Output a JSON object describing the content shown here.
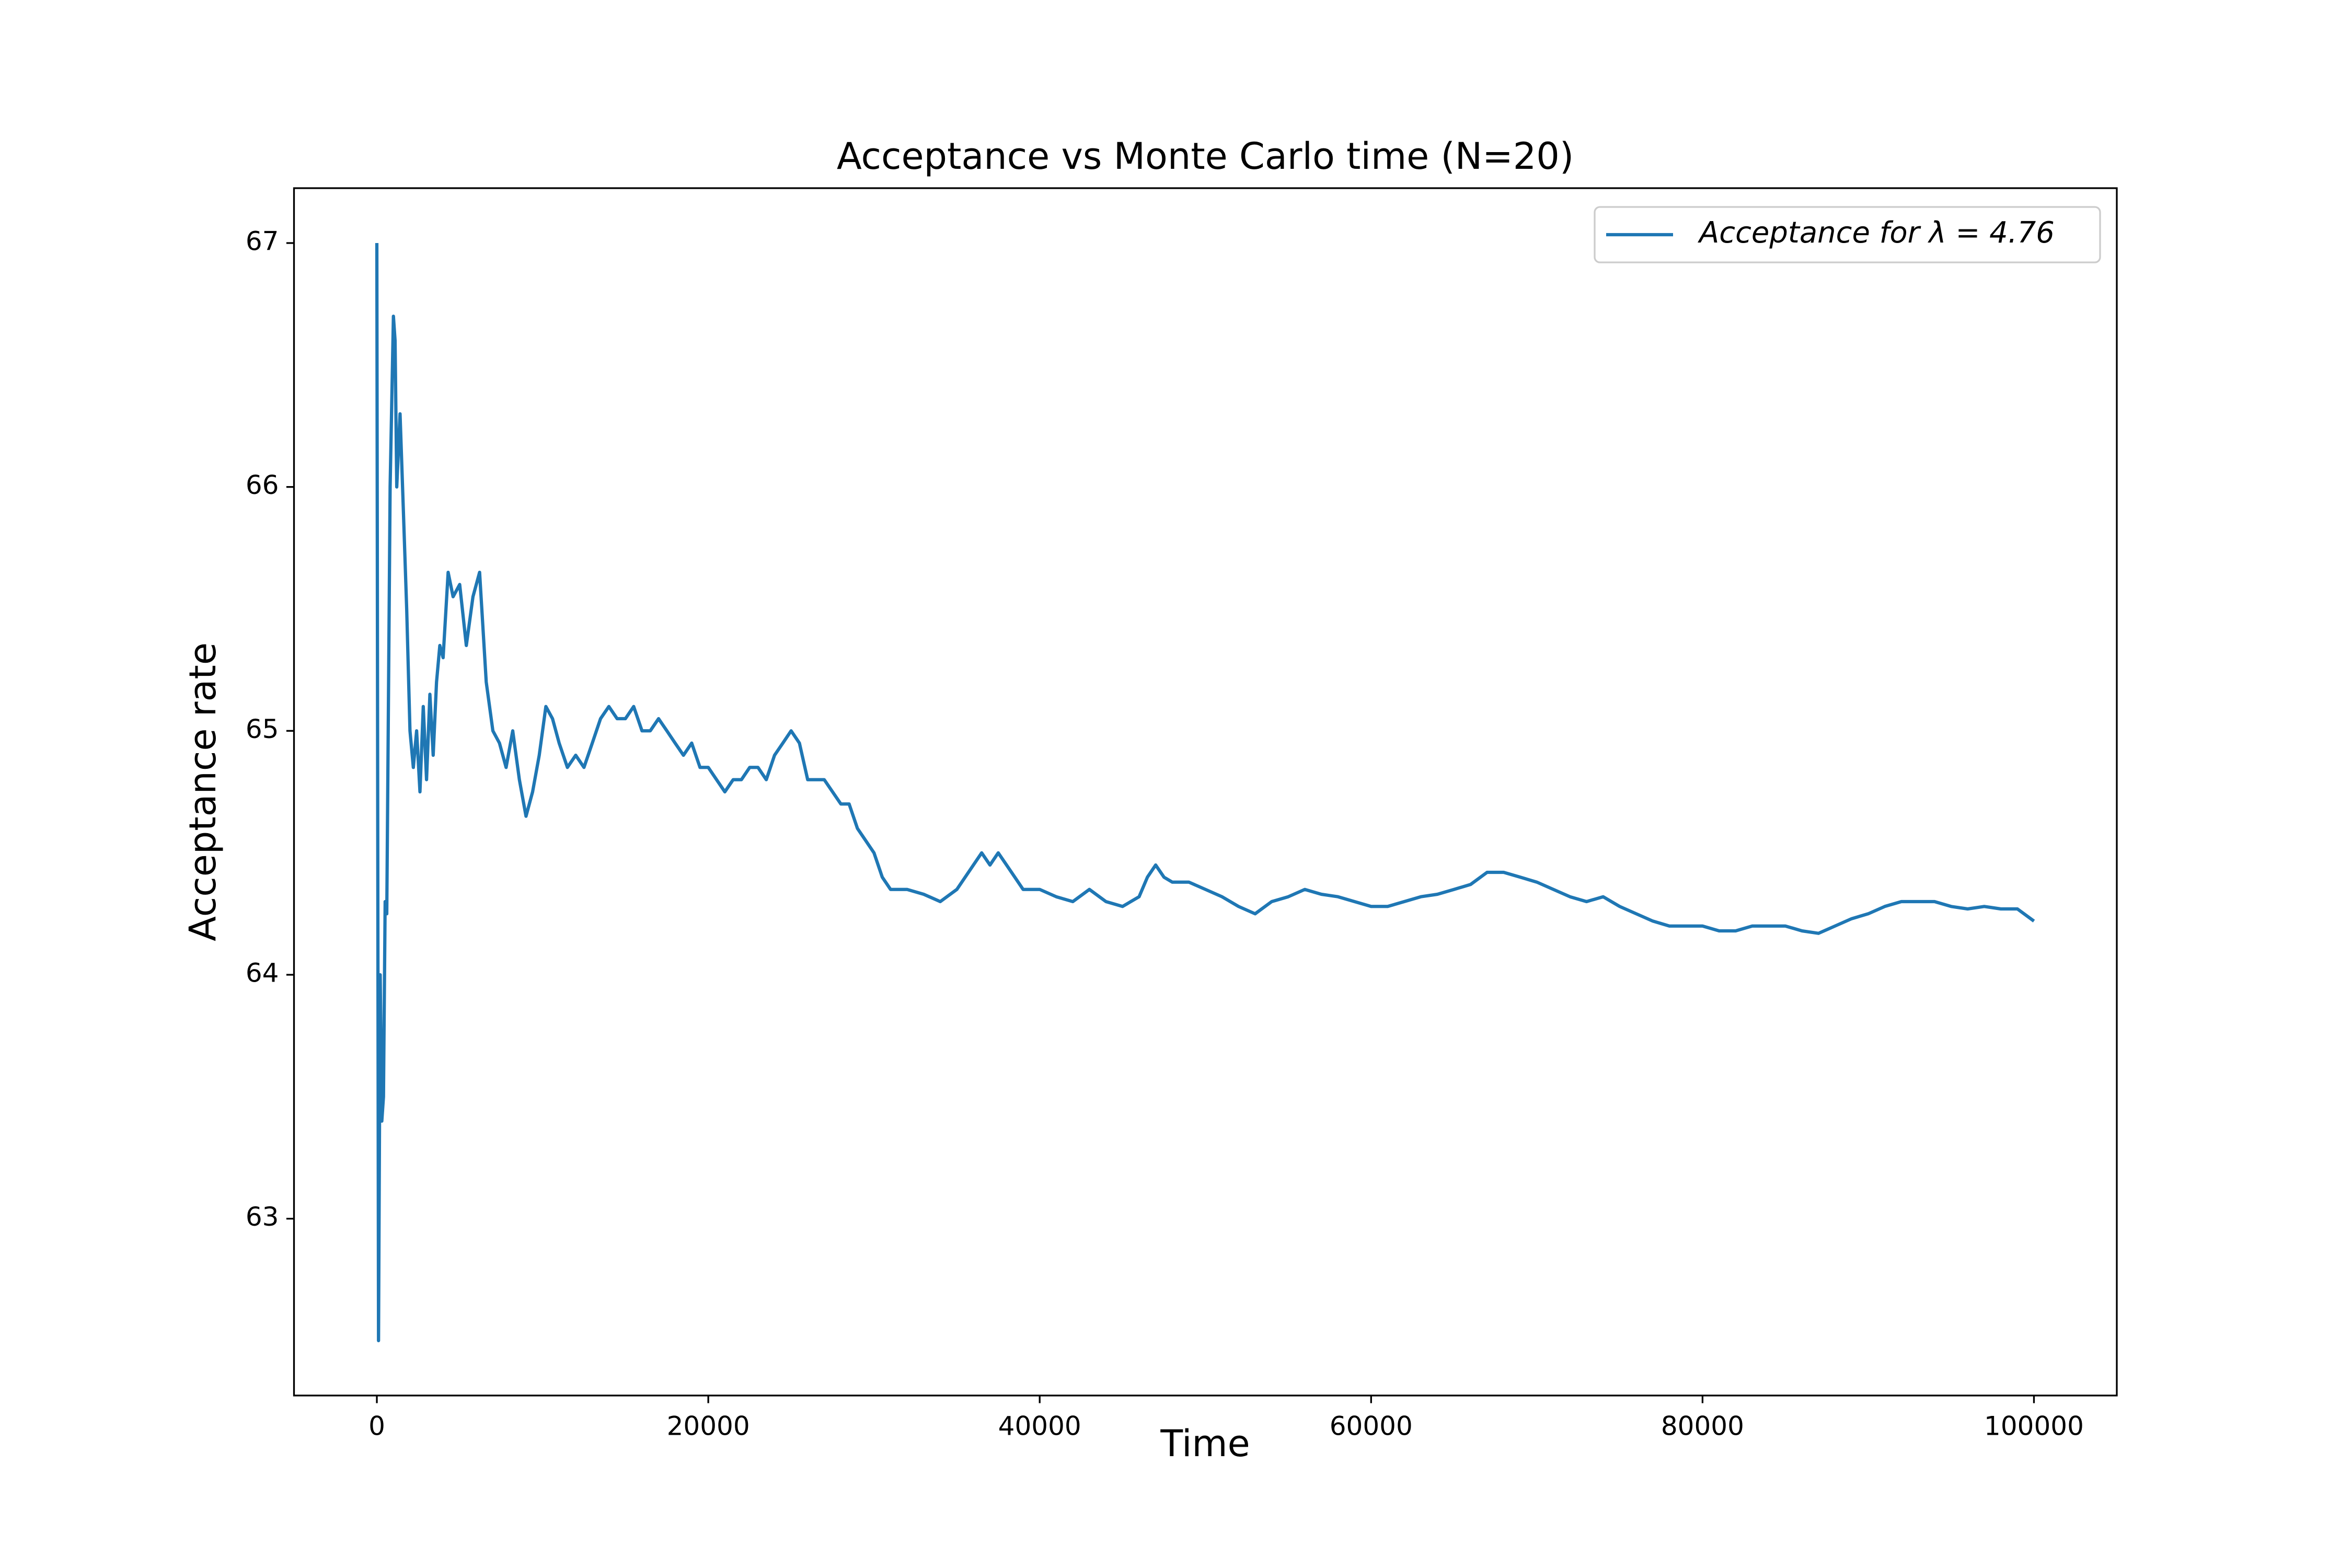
{
  "chart_data": {
    "type": "line",
    "title": "Acceptance vs Monte Carlo time (N=20)",
    "xlabel": "Time",
    "ylabel": "Acceptance rate",
    "x": [
      0,
      100,
      200,
      300,
      400,
      500,
      600,
      800,
      1000,
      1100,
      1200,
      1400,
      1600,
      1800,
      2000,
      2200,
      2400,
      2600,
      2800,
      3000,
      3200,
      3400,
      3600,
      3800,
      4000,
      4300,
      4600,
      5000,
      5400,
      5800,
      6200,
      6600,
      7000,
      7400,
      7800,
      8200,
      8600,
      9000,
      9400,
      9800,
      10200,
      10600,
      11000,
      11500,
      12000,
      12500,
      13000,
      13500,
      14000,
      14500,
      15000,
      15500,
      16000,
      16500,
      17000,
      17500,
      18000,
      18500,
      19000,
      19500,
      20000,
      20500,
      21000,
      21500,
      22000,
      22500,
      23000,
      23500,
      24000,
      24500,
      25000,
      25500,
      26000,
      26500,
      27000,
      27500,
      28000,
      28500,
      29000,
      29500,
      30000,
      30500,
      31000,
      31500,
      32000,
      33000,
      34000,
      35000,
      36000,
      36500,
      37000,
      37500,
      38000,
      38500,
      39000,
      40000,
      41000,
      42000,
      43000,
      44000,
      45000,
      46000,
      46500,
      47000,
      47500,
      48000,
      49000,
      50000,
      51000,
      52000,
      53000,
      54000,
      55000,
      56000,
      57000,
      58000,
      59000,
      60000,
      61000,
      62000,
      63000,
      64000,
      65000,
      66000,
      67000,
      68000,
      69000,
      70000,
      71000,
      72000,
      73000,
      74000,
      75000,
      76000,
      77000,
      78000,
      79000,
      80000,
      81000,
      82000,
      83000,
      84000,
      85000,
      86000,
      87000,
      88000,
      89000,
      90000,
      91000,
      92000,
      93000,
      94000,
      95000,
      96000,
      97000,
      98000,
      99000,
      100000
    ],
    "series": [
      {
        "name": "Acceptance for λ = 4.76",
        "color": "#1f77b4",
        "values": [
          67.0,
          62.5,
          64.0,
          63.4,
          63.5,
          64.3,
          64.25,
          66.0,
          66.7,
          66.6,
          66.0,
          66.3,
          65.9,
          65.5,
          65.0,
          64.85,
          65.0,
          64.75,
          65.1,
          64.8,
          65.15,
          64.9,
          65.2,
          65.35,
          65.3,
          65.65,
          65.55,
          65.6,
          65.35,
          65.55,
          65.65,
          65.2,
          65.0,
          64.95,
          64.85,
          65.0,
          64.8,
          64.65,
          64.75,
          64.9,
          65.1,
          65.05,
          64.95,
          64.85,
          64.9,
          64.85,
          64.95,
          65.05,
          65.1,
          65.05,
          65.05,
          65.1,
          65.0,
          65.0,
          65.05,
          65.0,
          64.95,
          64.9,
          64.95,
          64.85,
          64.85,
          64.8,
          64.75,
          64.8,
          64.8,
          64.85,
          64.85,
          64.8,
          64.9,
          64.95,
          65.0,
          64.95,
          64.8,
          64.8,
          64.8,
          64.75,
          64.7,
          64.7,
          64.6,
          64.55,
          64.5,
          64.4,
          64.35,
          64.35,
          64.35,
          64.33,
          64.3,
          64.35,
          64.45,
          64.5,
          64.45,
          64.5,
          64.45,
          64.4,
          64.35,
          64.35,
          64.32,
          64.3,
          64.35,
          64.3,
          64.28,
          64.32,
          64.4,
          64.45,
          64.4,
          64.38,
          64.38,
          64.35,
          64.32,
          64.28,
          64.25,
          64.3,
          64.32,
          64.35,
          64.33,
          64.32,
          64.3,
          64.28,
          64.28,
          64.3,
          64.32,
          64.33,
          64.35,
          64.37,
          64.42,
          64.42,
          64.4,
          64.38,
          64.35,
          64.32,
          64.3,
          64.32,
          64.28,
          64.25,
          64.22,
          64.2,
          64.2,
          64.2,
          64.18,
          64.18,
          64.2,
          64.2,
          64.2,
          64.18,
          64.17,
          64.2,
          64.23,
          64.25,
          64.28,
          64.3,
          64.3,
          64.3,
          64.28,
          64.27,
          64.28,
          64.27,
          64.27,
          64.22
        ]
      }
    ],
    "xlim": [
      -5000,
      105000
    ],
    "xticks": [
      0,
      20000,
      40000,
      60000,
      80000,
      100000
    ],
    "ylim": [
      62.275,
      67.225
    ],
    "yticks": [
      63,
      64,
      65,
      66,
      67
    ],
    "legend": "upper right",
    "grid": false
  }
}
